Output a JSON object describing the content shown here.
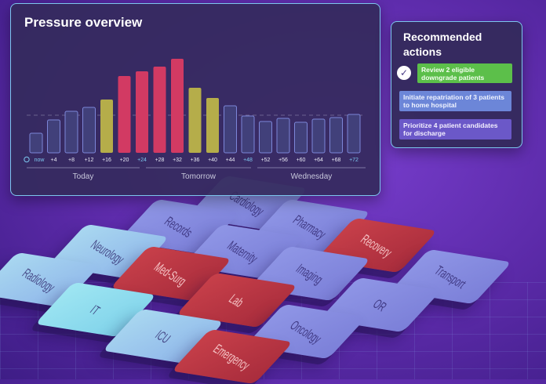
{
  "pressure_panel": {
    "title": "Pressure overview"
  },
  "chart_data": {
    "type": "bar",
    "categories": [
      "now",
      "+4",
      "+8",
      "+12",
      "+16",
      "+20",
      "+24",
      "+28",
      "+32",
      "+36",
      "+40",
      "+44",
      "+48",
      "+52",
      "+56",
      "+60",
      "+64",
      "+68",
      "+72"
    ],
    "values": [
      25,
      42,
      53,
      58,
      68,
      98,
      104,
      110,
      120,
      83,
      70,
      60,
      47,
      40,
      44,
      39,
      43,
      45,
      49
    ],
    "status": [
      "normal",
      "normal",
      "normal",
      "normal",
      "elevated",
      "critical",
      "critical",
      "critical",
      "critical",
      "elevated",
      "elevated",
      "normal",
      "normal",
      "normal",
      "normal",
      "normal",
      "normal",
      "normal",
      "normal"
    ],
    "highlight_ticks": [
      "+24",
      "+48",
      "+72"
    ],
    "threshold": 48,
    "ylim": [
      0,
      130
    ],
    "day_labels": [
      "Today",
      "Tomorrow",
      "Wednesday"
    ],
    "colors": {
      "normal_fill": "#41407a",
      "normal_stroke": "#7c86d8",
      "elevated": "#b5ad4a",
      "critical": "#d23a63",
      "tick": "#e8e8f4",
      "tick_highlight": "#7cc6ee"
    }
  },
  "actions": {
    "title": "Recommended actions",
    "check_icon": "✓",
    "items": [
      {
        "label": "Review 2 eligible downgrade patients",
        "color": "#5cbf4a"
      },
      {
        "label": "Initiate repatriation of 3 patients to home hospital",
        "color": "#6c86d8"
      },
      {
        "label": "Prioritize 4 patient candidates for discharge",
        "color": "#6b58c8"
      }
    ]
  },
  "departments": [
    {
      "label": "Cardiology",
      "status": "mid"
    },
    {
      "label": "Records",
      "status": "mid"
    },
    {
      "label": "Pharmacy",
      "status": "mid"
    },
    {
      "label": "Neurology",
      "status": "light"
    },
    {
      "label": "Maternity",
      "status": "mid"
    },
    {
      "label": "Recovery",
      "status": "red"
    },
    {
      "label": "Radiology",
      "status": "light"
    },
    {
      "label": "Med-Surg",
      "status": "red"
    },
    {
      "label": "Imaging",
      "status": "mid"
    },
    {
      "label": "Transport",
      "status": "mid"
    },
    {
      "label": "IT",
      "status": "cyan"
    },
    {
      "label": "Lab",
      "status": "red"
    },
    {
      "label": "OR",
      "status": "mid"
    },
    {
      "label": "ICU",
      "status": "light"
    },
    {
      "label": "Oncology",
      "status": "mid"
    },
    {
      "label": "Emergency",
      "status": "red"
    }
  ]
}
